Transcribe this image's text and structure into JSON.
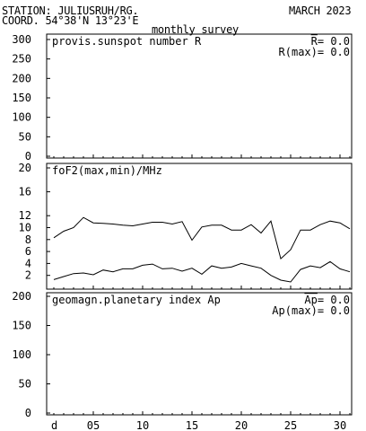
{
  "header": {
    "station": "STATION: JULIUSRUH/RG.",
    "coord": "COORD. 54°38'N 13°23'E",
    "period": "MARCH 2023",
    "subtitle": "monthly survey"
  },
  "x_axis": {
    "first_label": "d",
    "ticks": [
      "05",
      "10",
      "15",
      "20",
      "25",
      "30"
    ]
  },
  "chart_data": [
    {
      "type": "line",
      "title": "provis.sunspot number R",
      "stats": [
        {
          "label": "R",
          "suffix": "=",
          "value": "0.0"
        },
        {
          "label": "R(max)",
          "suffix": "=",
          "value": "0.0"
        }
      ],
      "ylim": [
        0,
        300
      ],
      "yticks": [
        0,
        50,
        100,
        150,
        200,
        250,
        300
      ],
      "series": []
    },
    {
      "type": "line",
      "title": "foF2(max,min)/MHz",
      "ylim": [
        0,
        20
      ],
      "yticks": [
        2,
        4,
        6,
        8,
        10,
        12,
        16,
        20
      ],
      "x": [
        1,
        2,
        3,
        4,
        5,
        6,
        7,
        8,
        9,
        10,
        11,
        12,
        13,
        14,
        15,
        16,
        17,
        18,
        19,
        20,
        21,
        22,
        23,
        24,
        25,
        26,
        27,
        28,
        29,
        30,
        31
      ],
      "series": [
        {
          "values": [
            8.3,
            9.4,
            10.0,
            11.7,
            10.8,
            10.7,
            10.6,
            10.4,
            10.3,
            10.6,
            10.9,
            10.9,
            10.6,
            11.0,
            7.9,
            10.1,
            10.4,
            10.4,
            9.6,
            9.6,
            10.5,
            9.1,
            11.1,
            4.8,
            6.3,
            9.6,
            9.6,
            10.5,
            11.1,
            10.8,
            9.8
          ]
        },
        {
          "values": [
            1.3,
            1.8,
            2.3,
            2.4,
            2.1,
            2.9,
            2.6,
            3.1,
            3.1,
            3.7,
            3.9,
            3.1,
            3.2,
            2.7,
            3.2,
            2.2,
            3.6,
            3.2,
            3.4,
            4.0,
            3.6,
            3.2,
            2.0,
            1.2,
            0.9,
            3.0,
            3.6,
            3.3,
            4.3,
            3.1,
            2.6
          ]
        }
      ]
    },
    {
      "type": "line",
      "title": "geomagn.planetary index Ap",
      "stats": [
        {
          "label": "Ap",
          "suffix": "=",
          "value": "0.0"
        },
        {
          "label": "Ap(max)",
          "suffix": "=",
          "value": "0.0"
        }
      ],
      "ylim": [
        0,
        200
      ],
      "yticks": [
        0,
        50,
        100,
        150,
        200
      ],
      "series": []
    }
  ]
}
